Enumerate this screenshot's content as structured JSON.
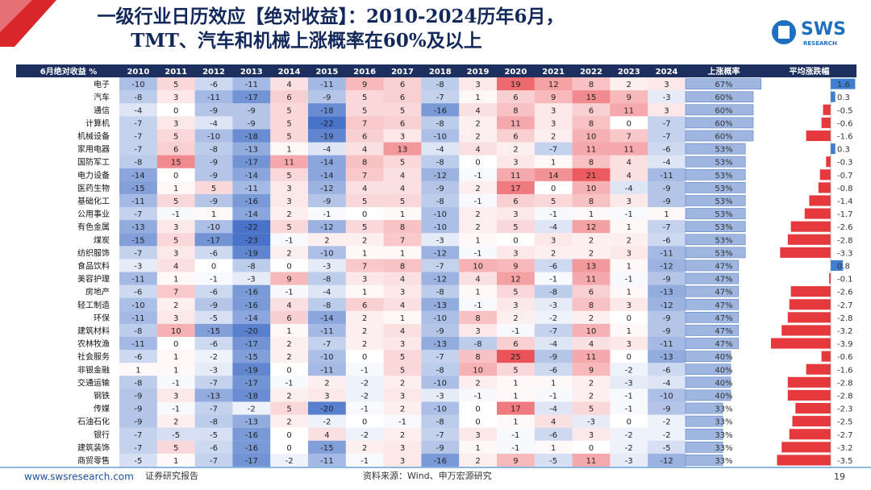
{
  "header": {
    "title_line1": "一级行业日历效应【绝对收益】：2010-2024历年6月，",
    "title_line2": "TMT、汽车和机械上涨概率在60%及以上",
    "logo": "SWS",
    "logo_sub": "RESEARCH"
  },
  "table": {
    "columns": [
      "6月绝对收益 %",
      "2010",
      "2011",
      "2012",
      "2013",
      "2014",
      "2015",
      "2016",
      "2017",
      "2018",
      "2019",
      "2020",
      "2021",
      "2022",
      "2023",
      "2024",
      "上涨概率",
      "平均涨跌幅"
    ],
    "rows": [
      {
        "name": "电子",
        "values": [
          -10,
          5,
          -6,
          -11,
          4,
          -11,
          9,
          6,
          -8,
          3,
          19,
          12,
          8,
          2,
          3
        ],
        "prob": {
          "value": 67,
          "label": "67%"
        },
        "avg": 1.6
      },
      {
        "name": "汽车",
        "values": [
          -8,
          3,
          -11,
          -17,
          6,
          -9,
          5,
          6,
          -7,
          1,
          6,
          9,
          15,
          9,
          -3
        ],
        "prob": {
          "value": 60,
          "label": "60%"
        },
        "avg": 0.3
      },
      {
        "name": "通信",
        "values": [
          -4,
          0,
          -9,
          -9,
          5,
          -18,
          5,
          5,
          -16,
          4,
          8,
          3,
          6,
          11,
          3
        ],
        "prob": {
          "value": 60,
          "label": "60%"
        },
        "avg": -0.5
      },
      {
        "name": "计算机",
        "values": [
          -7,
          3,
          -4,
          -9,
          5,
          -22,
          7,
          6,
          -8,
          2,
          11,
          3,
          8,
          0,
          -7
        ],
        "prob": {
          "value": 60,
          "label": "60%"
        },
        "avg": -0.6
      },
      {
        "name": "机械设备",
        "values": [
          -7,
          5,
          -10,
          -18,
          5,
          -19,
          6,
          3,
          -10,
          2,
          6,
          2,
          10,
          7,
          -7
        ],
        "prob": {
          "value": 60,
          "label": "60%"
        },
        "avg": -1.6
      },
      {
        "name": "家用电器",
        "values": [
          -7,
          6,
          -8,
          -13,
          1,
          -4,
          4,
          13,
          -4,
          4,
          2,
          -7,
          11,
          11,
          -6
        ],
        "prob": {
          "value": 53,
          "label": "53%"
        },
        "avg": 0.3
      },
      {
        "name": "国防军工",
        "values": [
          -8,
          15,
          -9,
          -17,
          11,
          -14,
          8,
          5,
          -8,
          0,
          3,
          1,
          8,
          4,
          -4
        ],
        "prob": {
          "value": 53,
          "label": "53%"
        },
        "avg": -0.3
      },
      {
        "name": "电力设备",
        "values": [
          -14,
          0,
          -9,
          -14,
          5,
          -14,
          7,
          4,
          -12,
          -1,
          11,
          14,
          21,
          4,
          -11
        ],
        "prob": {
          "value": 53,
          "label": "53%"
        },
        "avg": -0.7
      },
      {
        "name": "医药生物",
        "values": [
          -15,
          1,
          5,
          -11,
          3,
          -12,
          4,
          4,
          -9,
          2,
          17,
          0,
          10,
          -4,
          -9
        ],
        "prob": {
          "value": 53,
          "label": "53%"
        },
        "avg": -0.8
      },
      {
        "name": "基础化工",
        "values": [
          -11,
          5,
          -9,
          -16,
          3,
          -9,
          5,
          5,
          -8,
          -1,
          6,
          5,
          8,
          3,
          -9
        ],
        "prob": {
          "value": 53,
          "label": "53%"
        },
        "avg": -1.4
      },
      {
        "name": "公用事业",
        "values": [
          -7,
          -1,
          1,
          -14,
          2,
          -1,
          0,
          1,
          -10,
          2,
          3,
          -1,
          1,
          -1,
          1
        ],
        "prob": {
          "value": 53,
          "label": "53%"
        },
        "avg": -1.7
      },
      {
        "name": "有色金属",
        "values": [
          -13,
          3,
          -10,
          -22,
          5,
          -12,
          5,
          8,
          -10,
          2,
          5,
          -4,
          12,
          1,
          -7
        ],
        "prob": {
          "value": 53,
          "label": "53%"
        },
        "avg": -2.6
      },
      {
        "name": "煤炭",
        "values": [
          -15,
          5,
          -17,
          -23,
          -1,
          2,
          2,
          7,
          -3,
          1,
          0,
          3,
          2,
          2,
          -6
        ],
        "prob": {
          "value": 53,
          "label": "53%"
        },
        "avg": -2.8
      },
      {
        "name": "纺织服饰",
        "values": [
          -7,
          3,
          -6,
          -19,
          2,
          -10,
          1,
          1,
          -12,
          -1,
          3,
          2,
          2,
          3,
          -11
        ],
        "prob": {
          "value": 53,
          "label": "53%"
        },
        "avg": -3.3
      },
      {
        "name": "食品饮料",
        "values": [
          -3,
          4,
          0,
          -8,
          0,
          -3,
          7,
          8,
          -7,
          10,
          9,
          -6,
          13,
          1,
          -12
        ],
        "prob": {
          "value": 47,
          "label": "47%"
        },
        "avg": 0.8
      },
      {
        "name": "美容护理",
        "values": [
          -11,
          1,
          -1,
          -3,
          9,
          -8,
          3,
          4,
          -12,
          4,
          12,
          -1,
          11,
          -1,
          -9
        ],
        "prob": {
          "value": 47,
          "label": "47%"
        },
        "avg": -0.1
      },
      {
        "name": "房地产",
        "values": [
          -6,
          7,
          -6,
          -16,
          -1,
          -4,
          1,
          3,
          -8,
          1,
          5,
          -8,
          6,
          1,
          -13
        ],
        "prob": {
          "value": 47,
          "label": "47%"
        },
        "avg": -2.6
      },
      {
        "name": "轻工制造",
        "values": [
          -10,
          2,
          -9,
          -16,
          4,
          -8,
          6,
          4,
          -13,
          -1,
          3,
          -3,
          8,
          3,
          -12
        ],
        "prob": {
          "value": 47,
          "label": "47%"
        },
        "avg": -2.7
      },
      {
        "name": "环保",
        "values": [
          -11,
          3,
          -5,
          -14,
          6,
          -14,
          2,
          1,
          -10,
          8,
          2,
          -2,
          2,
          0,
          -9
        ],
        "prob": {
          "value": 47,
          "label": "47%"
        },
        "avg": -2.8
      },
      {
        "name": "建筑材料",
        "values": [
          -8,
          10,
          -15,
          -20,
          1,
          -11,
          2,
          4,
          -9,
          3,
          -1,
          -7,
          10,
          1,
          -9
        ],
        "prob": {
          "value": 47,
          "label": "47%"
        },
        "avg": -3.2
      },
      {
        "name": "农林牧渔",
        "values": [
          -11,
          0,
          -6,
          -17,
          2,
          -7,
          2,
          3,
          -13,
          -8,
          6,
          -4,
          4,
          3,
          -11
        ],
        "prob": {
          "value": 47,
          "label": "47%"
        },
        "avg": -3.9
      },
      {
        "name": "社会服务",
        "values": [
          -6,
          1,
          -2,
          -15,
          2,
          -10,
          0,
          5,
          -7,
          8,
          25,
          -9,
          11,
          0,
          -13
        ],
        "prob": {
          "value": 40,
          "label": "40%"
        },
        "avg": -0.6
      },
      {
        "name": "非银金融",
        "values": [
          1,
          1,
          -3,
          -19,
          0,
          -11,
          -1,
          5,
          -8,
          10,
          5,
          -6,
          9,
          -2,
          -6
        ],
        "prob": {
          "value": 40,
          "label": "40%"
        },
        "avg": -1.6
      },
      {
        "name": "交通运输",
        "values": [
          -8,
          -1,
          -7,
          -17,
          -1,
          2,
          -2,
          2,
          -10,
          2,
          1,
          1,
          2,
          -3,
          -4
        ],
        "prob": {
          "value": 40,
          "label": "40%"
        },
        "avg": -2.8
      },
      {
        "name": "钢铁",
        "values": [
          -9,
          3,
          -13,
          -18,
          2,
          3,
          -2,
          3,
          -3,
          -1,
          1,
          -1,
          2,
          -1,
          -10
        ],
        "prob": {
          "value": 40,
          "label": "40%"
        },
        "avg": -2.8
      },
      {
        "name": "传媒",
        "values": [
          -9,
          -1,
          -7,
          -2,
          5,
          -20,
          -1,
          2,
          -10,
          0,
          17,
          -4,
          5,
          -1,
          -9
        ],
        "prob": {
          "value": 33,
          "label": "33%"
        },
        "avg": -2.3
      },
      {
        "name": "石油石化",
        "values": [
          -9,
          2,
          -8,
          -13,
          2,
          -2,
          0,
          -1,
          -8,
          0,
          1,
          4,
          -3,
          0,
          -2
        ],
        "prob": {
          "value": 33,
          "label": "33%"
        },
        "avg": -2.5
      },
      {
        "name": "银行",
        "values": [
          -7,
          -5,
          -5,
          -16,
          0,
          4,
          -2,
          2,
          -7,
          3,
          -1,
          -6,
          3,
          -2,
          -2
        ],
        "prob": {
          "value": 33,
          "label": "33%"
        },
        "avg": -2.7
      },
      {
        "name": "建筑装饰",
        "values": [
          -7,
          5,
          -6,
          -16,
          0,
          -15,
          2,
          3,
          -9,
          1,
          -1,
          1,
          0,
          -2,
          -5
        ],
        "prob": {
          "value": 33,
          "label": "33%"
        },
        "avg": -3.2
      },
      {
        "name": "商贸零售",
        "values": [
          -5,
          1,
          -7,
          -17,
          -2,
          -11,
          -1,
          3,
          -16,
          2,
          9,
          -5,
          11,
          -3,
          -12
        ],
        "prob": {
          "value": 33,
          "label": "33%"
        },
        "avg": -3.5
      }
    ]
  },
  "footer": {
    "website": "www.swsresearch.com",
    "report_type": "证券研究报告",
    "source": "资料来源：Wind、申万宏源研究",
    "page": "19"
  }
}
